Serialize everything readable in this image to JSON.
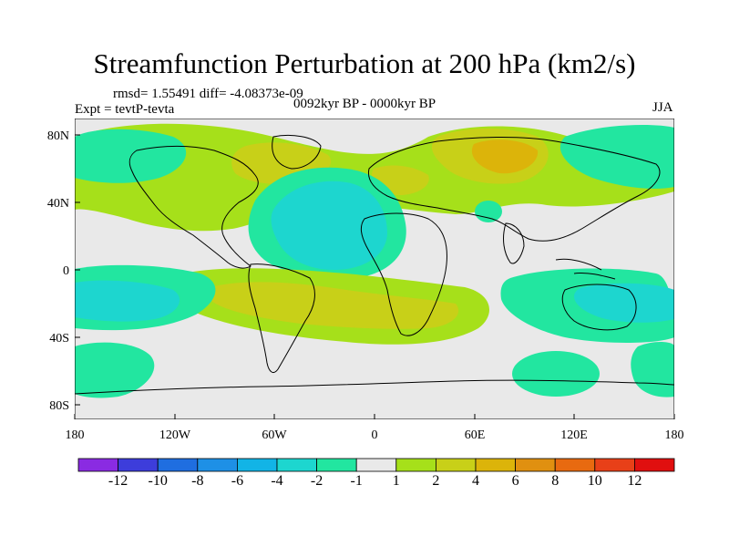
{
  "title": "Streamfunction Perturbation at 200 hPa (km2/s)",
  "stats": "rmsd= 1.55491 diff= -4.08373e-09",
  "experiment": "Expt = tevtP-tevta",
  "period": "0092kyr BP - 0000kyr BP",
  "season": "JJA",
  "lat_ticks": [
    "80N",
    "40N",
    "0",
    "40S",
    "80S"
  ],
  "lon_ticks": [
    "180",
    "120W",
    "60W",
    "0",
    "60E",
    "120E",
    "180"
  ],
  "colorbar": {
    "labels": [
      "-12",
      "-10",
      "-8",
      "-6",
      "-4",
      "-2",
      "-1",
      "1",
      "2",
      "4",
      "6",
      "8",
      "10",
      "12"
    ],
    "colors": [
      "#8a2be2",
      "#3d3ddb",
      "#1f6ee0",
      "#1e90e6",
      "#12b4e6",
      "#1dd6cf",
      "#22e6a0",
      "#e9e9e9",
      "#a6e01a",
      "#c8d018",
      "#dcb40a",
      "#e09010",
      "#e86a10",
      "#e84018",
      "#e00f0f"
    ]
  },
  "palette": {
    "neutral": "#e9e9e9",
    "pos1": "#a6e01a",
    "pos2": "#c8d018",
    "pos3": "#dcb40a",
    "neg1": "#22e6a0",
    "neg2": "#1dd6cf",
    "neg3": "#12b4e6"
  }
}
